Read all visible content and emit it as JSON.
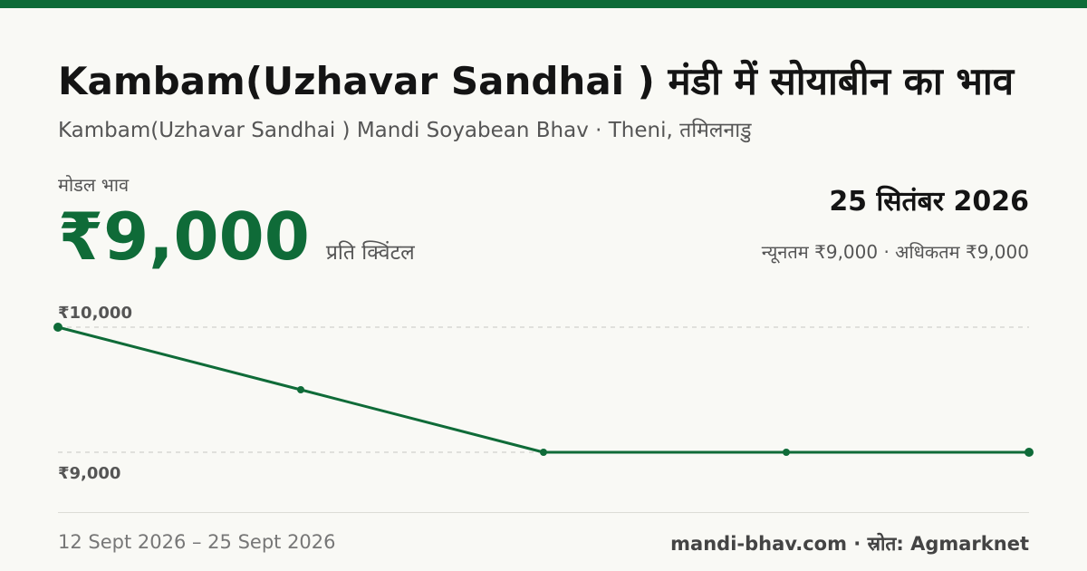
{
  "header": {
    "title": "Kambam(Uzhavar Sandhai ) मंडी में सोयाबीन का भाव",
    "subtitle": "Kambam(Uzhavar Sandhai ) Mandi Soyabean Bhav · Theni, तमिलनाडु"
  },
  "price": {
    "label": "मोडल भाव",
    "value": "₹9,000",
    "unit": "प्रति क्विंटल",
    "date": "25 सितंबर 2026",
    "min_max": "न्यूनतम ₹9,000 · अधिकतम ₹9,000"
  },
  "footer": {
    "range": "12 Sept 2026 – 25 Sept 2026",
    "source": "mandi-bhav.com · स्रोत: Agmarknet"
  },
  "colors": {
    "accent": "#0f6b38",
    "grid": "#c8c8c2"
  },
  "chart_data": {
    "type": "line",
    "title": "",
    "xlabel": "",
    "ylabel": "",
    "ylim": [
      9000,
      10000
    ],
    "y_tick_labels": [
      "₹10,000",
      "₹9,000"
    ],
    "grid": true,
    "series": [
      {
        "values": [
          10000,
          9500,
          9000,
          9000,
          9000
        ]
      }
    ]
  }
}
